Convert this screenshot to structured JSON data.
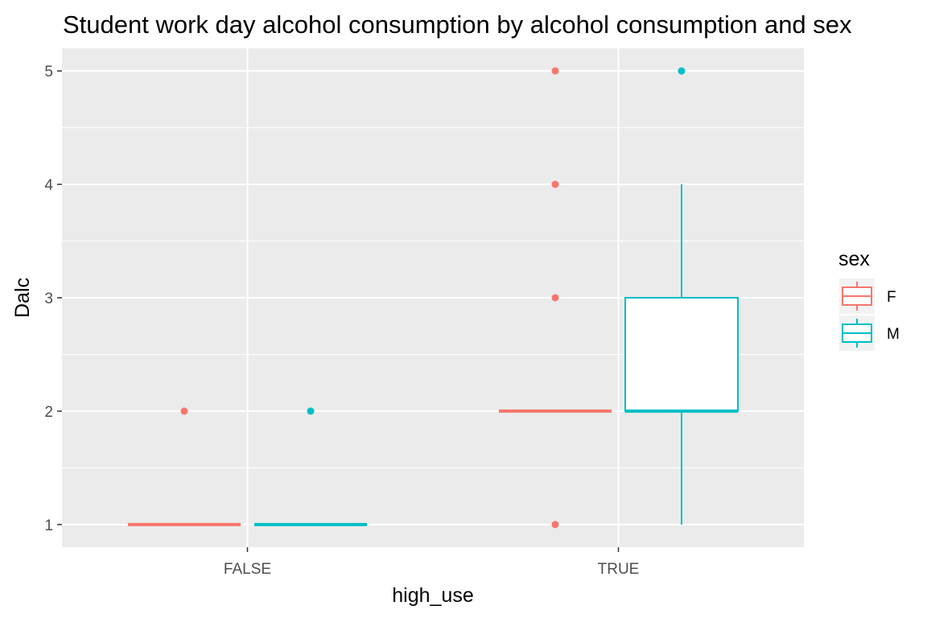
{
  "chart_data": {
    "type": "boxplot",
    "title": "Student work day alcohol consumption by alcohol consumption and sex",
    "xlabel": "high_use",
    "ylabel": "Dalc",
    "categories": [
      "FALSE",
      "TRUE"
    ],
    "ylim": [
      0.8,
      5.2
    ],
    "yticks": [
      1,
      2,
      3,
      4,
      5
    ],
    "grid": true,
    "legend": {
      "title": "sex",
      "placement": "right"
    },
    "series": [
      {
        "name": "F",
        "color": "#F8766D",
        "boxes": [
          {
            "category": "FALSE",
            "min": 1,
            "q1": 1,
            "median": 1,
            "q3": 1,
            "max": 1,
            "outliers": [
              2
            ]
          },
          {
            "category": "TRUE",
            "min": 2,
            "q1": 2,
            "median": 2,
            "q3": 2,
            "max": 2,
            "outliers": [
              1,
              3,
              4,
              5
            ]
          }
        ]
      },
      {
        "name": "M",
        "color": "#00BFC4",
        "boxes": [
          {
            "category": "FALSE",
            "min": 1,
            "q1": 1,
            "median": 1,
            "q3": 1,
            "max": 1,
            "outliers": [
              2
            ]
          },
          {
            "category": "TRUE",
            "min": 1,
            "q1": 2,
            "median": 2,
            "q3": 3,
            "max": 4,
            "outliers": [
              5
            ]
          }
        ]
      }
    ]
  }
}
